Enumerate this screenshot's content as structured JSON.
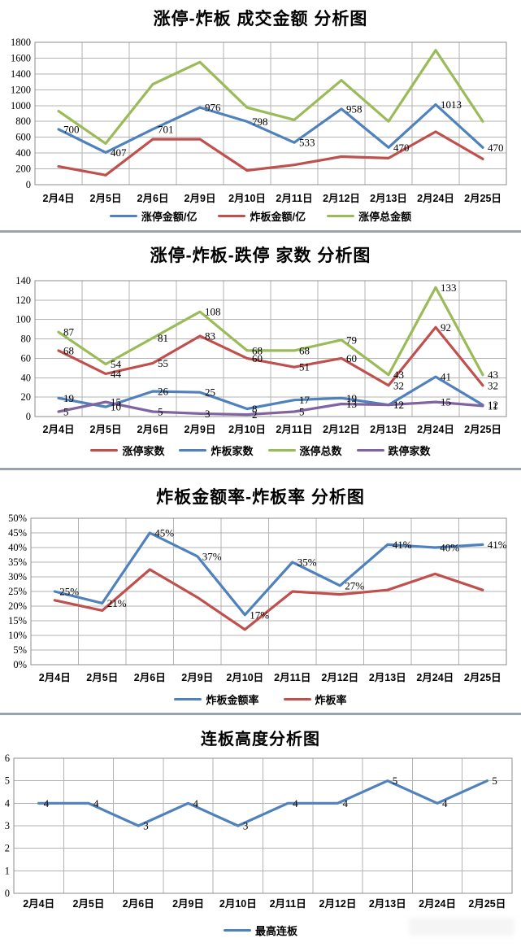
{
  "chart_data": [
    {
      "type": "line",
      "title": "涨停-炸板 成交金额 分析图",
      "categories": [
        "2月4日",
        "2月5日",
        "2月6日",
        "2月9日",
        "2月10日",
        "2月11日",
        "2月12日",
        "2月13日",
        "2月24日",
        "2月25日"
      ],
      "ylim": [
        0,
        1800
      ],
      "ystep": 200,
      "ytick_suffix": "",
      "grid": true,
      "legend_position": "bottom",
      "series": [
        {
          "name": "涨停金额/亿",
          "color": "#4F81BD",
          "values": [
            700,
            407,
            701,
            976,
            798,
            533,
            958,
            470,
            1013,
            470
          ],
          "show_labels": true,
          "label_suffix": ""
        },
        {
          "name": "炸板金额/亿",
          "color": "#C0504D",
          "values": [
            230,
            120,
            575,
            575,
            180,
            250,
            355,
            335,
            670,
            325
          ],
          "show_labels": false,
          "label_suffix": ""
        },
        {
          "name": "涨停总金额",
          "color": "#9BBB59",
          "values": [
            930,
            520,
            1270,
            1550,
            975,
            820,
            1320,
            800,
            1700,
            800
          ],
          "show_labels": false,
          "label_suffix": ""
        }
      ]
    },
    {
      "type": "line",
      "title": "涨停-炸板-跌停 家数 分析图",
      "categories": [
        "2月4日",
        "2月5日",
        "2月6日",
        "2月9日",
        "2月10日",
        "2月11日",
        "2月12日",
        "2月13日",
        "2月24日",
        "2月25日"
      ],
      "ylim": [
        0,
        140
      ],
      "ystep": 20,
      "ytick_suffix": "",
      "grid": true,
      "legend_position": "bottom",
      "series": [
        {
          "name": "涨停家数",
          "color": "#C0504D",
          "values": [
            68,
            44,
            55,
            83,
            60,
            51,
            60,
            32,
            92,
            32
          ],
          "show_labels": true,
          "label_suffix": ""
        },
        {
          "name": "炸板家数",
          "color": "#4F81BD",
          "values": [
            19,
            10,
            26,
            25,
            8,
            17,
            19,
            12,
            41,
            12
          ],
          "show_labels": true,
          "label_suffix": ""
        },
        {
          "name": "涨停总数",
          "color": "#9BBB59",
          "values": [
            87,
            54,
            81,
            108,
            68,
            68,
            79,
            43,
            133,
            43
          ],
          "show_labels": true,
          "label_suffix": ""
        },
        {
          "name": "跌停家数",
          "color": "#8064A2",
          "values": [
            5,
            15,
            5,
            3,
            2,
            5,
            13,
            12,
            15,
            11
          ],
          "show_labels": true,
          "label_suffix": ""
        }
      ]
    },
    {
      "type": "line",
      "title": "炸板金额率-炸板率 分析图",
      "categories": [
        "2月4日",
        "2月5日",
        "2月6日",
        "2月9日",
        "2月10日",
        "2月11日",
        "2月12日",
        "2月13日",
        "2月24日",
        "2月25日"
      ],
      "ylim": [
        0,
        50
      ],
      "ystep": 5,
      "ytick_suffix": "%",
      "grid": true,
      "legend_position": "bottom",
      "series": [
        {
          "name": "炸板金额率",
          "color": "#4F81BD",
          "values": [
            25,
            21,
            45,
            37,
            17,
            35,
            27,
            41,
            40,
            41
          ],
          "show_labels": true,
          "label_suffix": "%"
        },
        {
          "name": "炸板率",
          "color": "#C0504D",
          "values": [
            22,
            18.5,
            32.5,
            23,
            12,
            25,
            24,
            25.5,
            31,
            25.5
          ],
          "show_labels": false,
          "label_suffix": "%"
        }
      ]
    },
    {
      "type": "line",
      "title": "连板高度分析图",
      "categories": [
        "2月4日",
        "2月5日",
        "2月6日",
        "2月9日",
        "2月10日",
        "2月11日",
        "2月12日",
        "2月13日",
        "2月24日",
        "2月25日"
      ],
      "ylim": [
        0,
        6
      ],
      "ystep": 1,
      "ytick_suffix": "",
      "grid": true,
      "legend_position": "bottom",
      "series": [
        {
          "name": "最高连板",
          "color": "#4F81BD",
          "values": [
            4,
            4,
            3,
            4,
            3,
            4,
            4,
            5,
            4,
            5
          ],
          "show_labels": true,
          "label_suffix": ""
        }
      ]
    }
  ]
}
